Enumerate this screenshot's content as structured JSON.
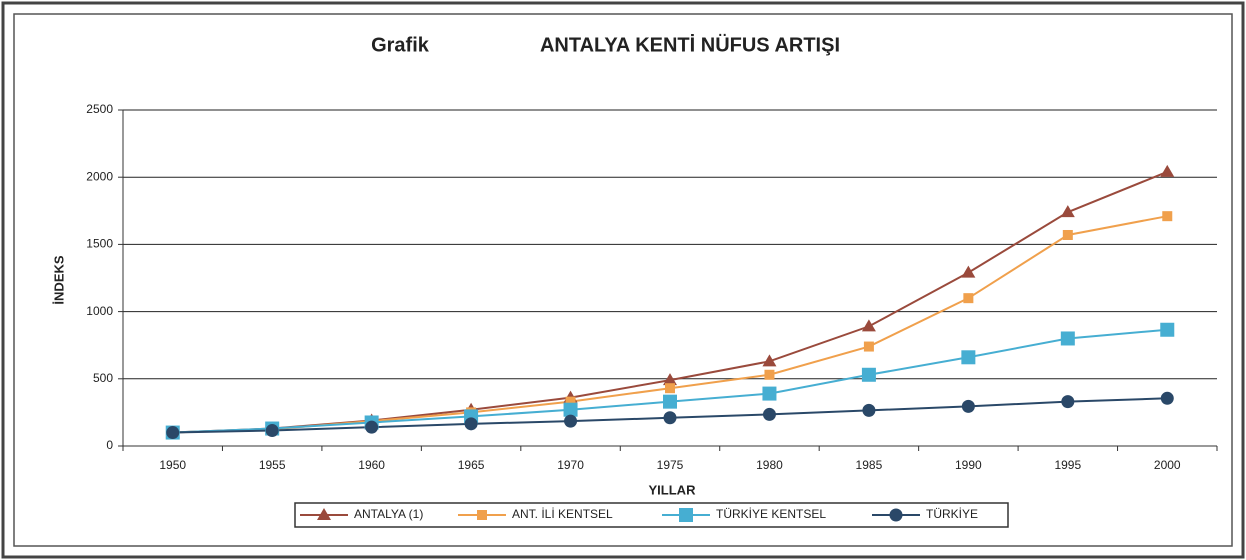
{
  "chart_data": {
    "type": "line",
    "title_prefix": "Grafik",
    "title": "ANTALYA KENTİ NÜFUS ARTIŞI",
    "x_label": "YILLAR",
    "y_label": "İNDEKS",
    "categories": [
      "1950",
      "1955",
      "1960",
      "1965",
      "1970",
      "1975",
      "1980",
      "1985",
      "1990",
      "1995",
      "2000"
    ],
    "series": [
      {
        "name": "ANTALYA (1)",
        "color": "#9a4a3c",
        "marker": "triangle",
        "values": [
          100,
          130,
          190,
          270,
          360,
          490,
          630,
          890,
          1290,
          1740,
          2040
        ]
      },
      {
        "name": "ANT. İLİ KENTSEL",
        "color": "#f0a04c",
        "marker": "square",
        "values": [
          100,
          125,
          185,
          250,
          330,
          430,
          530,
          740,
          1100,
          1570,
          1710
        ]
      },
      {
        "name": "TÜRKİYE KENTSEL",
        "color": "#46aed2",
        "marker": "bigsquare",
        "values": [
          100,
          130,
          175,
          220,
          270,
          330,
          390,
          530,
          660,
          800,
          865
        ]
      },
      {
        "name": "TÜRKİYE",
        "color": "#2a4868",
        "marker": "circle",
        "values": [
          100,
          115,
          140,
          165,
          185,
          210,
          235,
          265,
          295,
          330,
          355
        ]
      }
    ],
    "ylim": [
      0,
      2500
    ],
    "yticks": [
      0,
      500,
      1000,
      1500,
      2000,
      2500
    ],
    "grid": true,
    "legend": "bottom"
  }
}
